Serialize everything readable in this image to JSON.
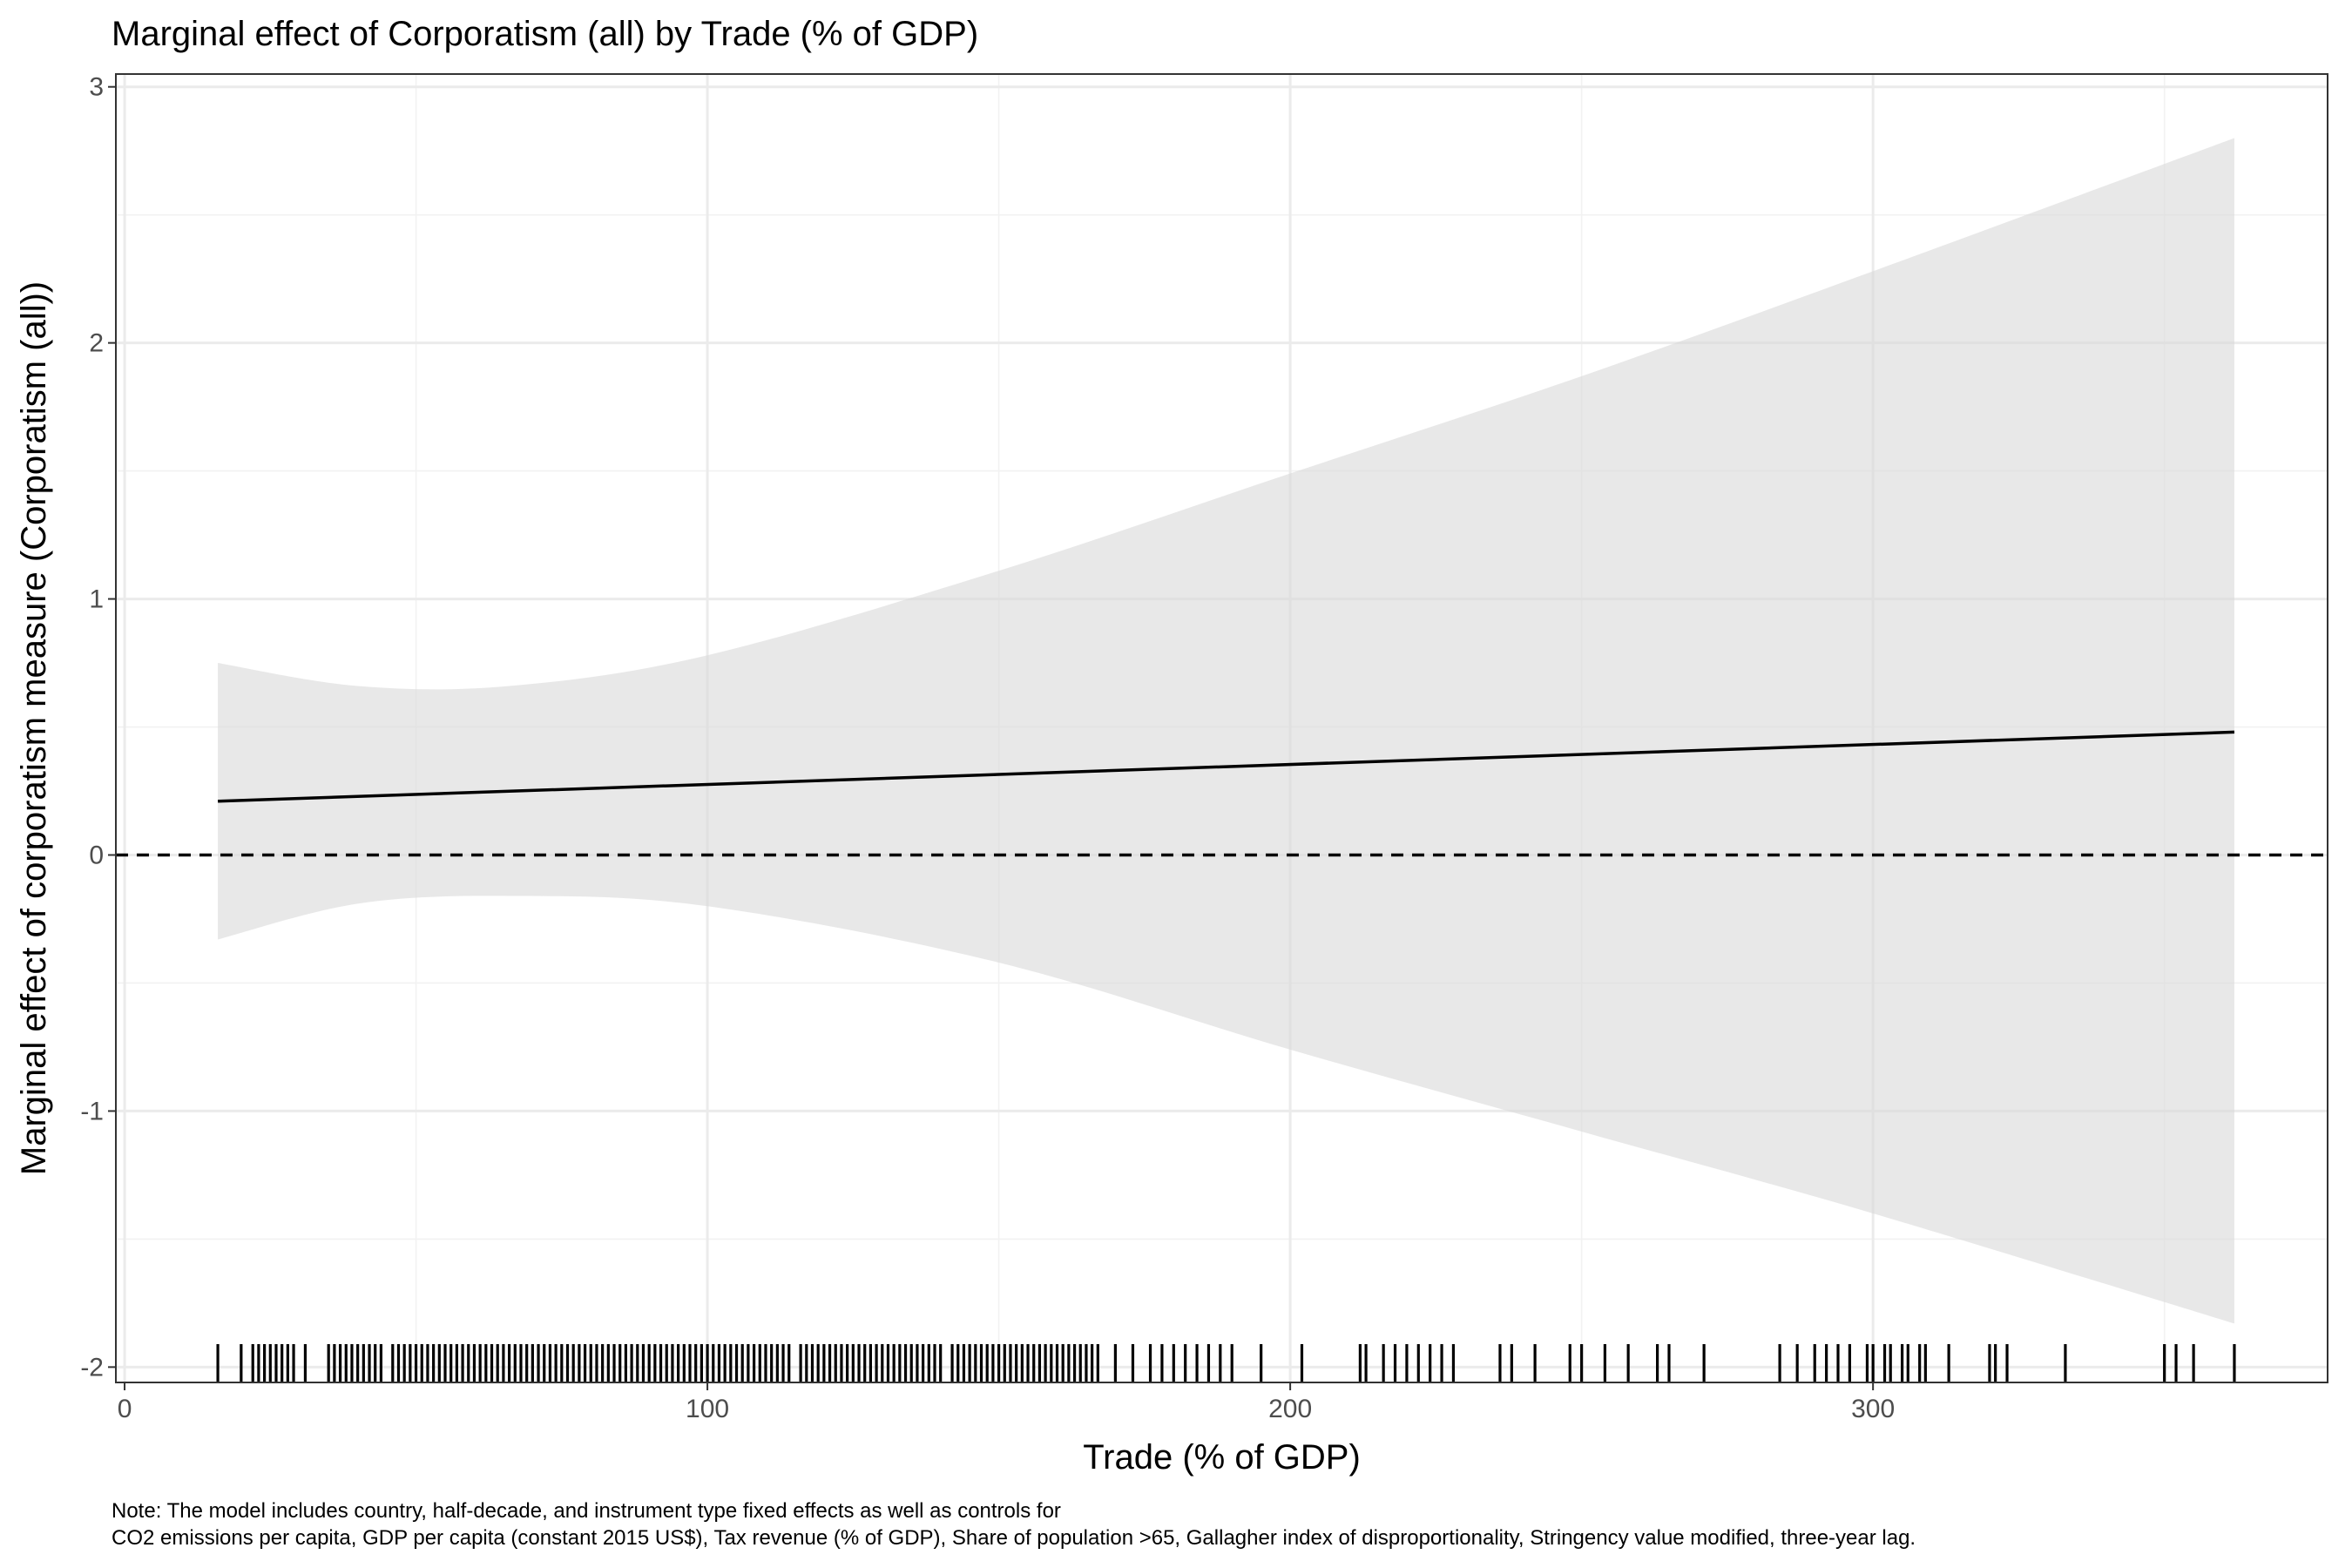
{
  "chart_data": {
    "type": "line",
    "title": "Marginal effect of Corporatism (all) by Trade (% of GDP)",
    "xlabel": "Trade (% of GDP)",
    "ylabel": "Marginal effect of corporatism measure (Corporatism (all))",
    "xlim": [
      -1.5,
      378
    ],
    "ylim": [
      -2.06,
      3.05
    ],
    "x_ticks": [
      0,
      100,
      200,
      300
    ],
    "y_ticks": [
      -2,
      -1,
      0,
      1,
      2,
      3
    ],
    "x_tick_labels": [
      "0",
      "100",
      "200",
      "300"
    ],
    "y_tick_labels": [
      "-2",
      "-1",
      "0",
      "1",
      "2",
      "3"
    ],
    "grid": true,
    "reference_line": {
      "y": 0,
      "style": "dashed"
    },
    "series": [
      {
        "x": [
          16,
          362
        ],
        "y": [
          0.21,
          0.48
        ],
        "lower": [
          [
            16,
            -0.33
          ],
          [
            40,
            -0.19
          ],
          [
            66,
            -0.16
          ],
          [
            100,
            -0.2
          ],
          [
            150,
            -0.42
          ],
          [
            200,
            -0.76
          ],
          [
            250,
            -1.08
          ],
          [
            300,
            -1.4
          ],
          [
            362,
            -1.83
          ]
        ],
        "upper": [
          [
            16,
            0.75
          ],
          [
            40,
            0.66
          ],
          [
            66,
            0.66
          ],
          [
            100,
            0.78
          ],
          [
            150,
            1.11
          ],
          [
            200,
            1.49
          ],
          [
            250,
            1.87
          ],
          [
            300,
            2.28
          ],
          [
            362,
            2.8
          ]
        ]
      }
    ],
    "rug_x": [
      16,
      20,
      22,
      23,
      24,
      25,
      26,
      27,
      28,
      29,
      31,
      35,
      36,
      37,
      38,
      39,
      40,
      41,
      42,
      43,
      44,
      46,
      47,
      48,
      49,
      50,
      51,
      52,
      53,
      54,
      55,
      56,
      57,
      58,
      59,
      60,
      61,
      62,
      63,
      64,
      65,
      66,
      67,
      68,
      69,
      70,
      71,
      72,
      73,
      74,
      75,
      76,
      77,
      78,
      79,
      80,
      81,
      82,
      83,
      84,
      85,
      86,
      87,
      88,
      89,
      90,
      91,
      92,
      93,
      94,
      95,
      96,
      97,
      98,
      99,
      100,
      101,
      102,
      103,
      104,
      105,
      106,
      107,
      108,
      109,
      110,
      111,
      112,
      113,
      114,
      116,
      117,
      118,
      119,
      120,
      121,
      122,
      123,
      124,
      125,
      126,
      127,
      128,
      129,
      130,
      131,
      132,
      133,
      134,
      135,
      136,
      137,
      138,
      139,
      140,
      142,
      143,
      144,
      145,
      146,
      147,
      148,
      149,
      150,
      151,
      152,
      153,
      154,
      155,
      156,
      157,
      158,
      159,
      160,
      161,
      162,
      163,
      164,
      165,
      166,
      167,
      170,
      173,
      176,
      178,
      180,
      182,
      184,
      186,
      188,
      190,
      195,
      202,
      212,
      213,
      216,
      218,
      220,
      222,
      224,
      226,
      228,
      236,
      238,
      242,
      248,
      250,
      254,
      258,
      263,
      265,
      271,
      284,
      287,
      290,
      292,
      294,
      296,
      299,
      300,
      302,
      303,
      305,
      306,
      308,
      309,
      313,
      320,
      321,
      323,
      333,
      350,
      352,
      355,
      362
    ]
  },
  "note": {
    "line1": "Note: The model includes country, half-decade, and instrument type fixed effects as well as controls for",
    "line2": "CO2 emissions per capita, GDP per capita (constant 2015 US$), Tax revenue (% of GDP), Share of population >65, Gallagher index of disproportionality, Stringency value modified, three-year lag."
  }
}
